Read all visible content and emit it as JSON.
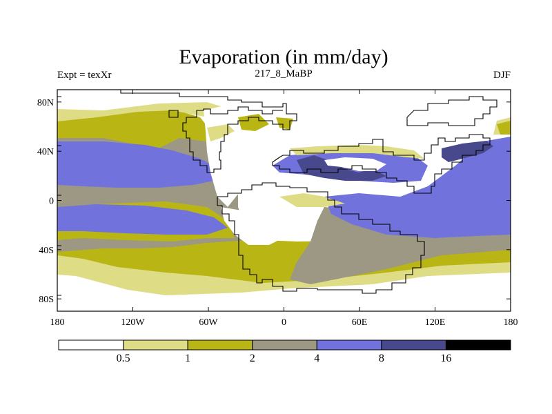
{
  "title": "Evaporation (in mm/day)",
  "subtitle_left": "Expt = texXr",
  "subtitle_center": "217_8_MaBP",
  "subtitle_right": "DJF",
  "colors": {
    "c0": "#ffffff",
    "c1": "#dfdc86",
    "c2": "#b8b514",
    "c3": "#9c9884",
    "c4": "#7272dc",
    "c5": "#48488c",
    "c6": "#000000",
    "frame": "#000000",
    "coast": "#000000"
  },
  "map": {
    "projection": "cylindrical-equidistant",
    "lon_range": [
      -180,
      180
    ],
    "lat_range": [
      -90,
      90
    ],
    "lat_ticks": [
      {
        "value": 80,
        "label": "80N"
      },
      {
        "value": 40,
        "label": "40N"
      },
      {
        "value": 0,
        "label": "0"
      },
      {
        "value": -40,
        "label": "40S"
      },
      {
        "value": -80,
        "label": "80S"
      }
    ],
    "lon_ticks": [
      {
        "value": -180,
        "label": "180"
      },
      {
        "value": -120,
        "label": "120W"
      },
      {
        "value": -60,
        "label": "60W"
      },
      {
        "value": 0,
        "label": "0"
      },
      {
        "value": 60,
        "label": "60E"
      },
      {
        "value": 120,
        "label": "120E"
      },
      {
        "value": 180,
        "label": "180"
      }
    ]
  },
  "colorbar": {
    "levels": [
      "0.5",
      "1",
      "2",
      "4",
      "8",
      "16"
    ],
    "box_colors": [
      "#ffffff",
      "#dfdc86",
      "#b8b514",
      "#9c9884",
      "#7272dc",
      "#48488c",
      "#000000"
    ]
  }
}
